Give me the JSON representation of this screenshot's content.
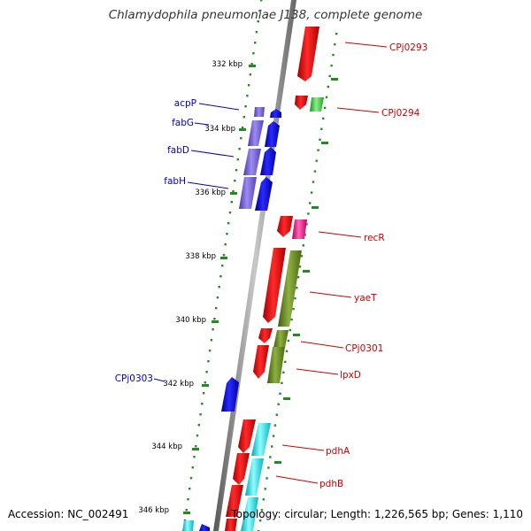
{
  "title": "Chlamydophila pneumoniae J138, complete genome",
  "accession": "Accession: NC_002491",
  "topology": "Topology: circular; Length: 1,226,565 bp; Genes: 1,110",
  "kbp_ticks": [
    "332 kbp",
    "334 kbp",
    "336 kbp",
    "338 kbp",
    "340 kbp",
    "342 kbp",
    "344 kbp",
    "346 kbp"
  ],
  "genes_left": [
    "acpP",
    "fabG",
    "fabD",
    "fabH",
    "CPj0303"
  ],
  "genes_right": [
    "CPj0293",
    "CPj0294",
    "recR",
    "yaeT",
    "CPj0301",
    "lpxD",
    "pdhA",
    "pdhB"
  ],
  "colors": {
    "forward_strand": "#0000ee",
    "reverse_strand": "#ee0000",
    "backbone": "#888888",
    "tick_dots": "#228b22",
    "cog_lipid": "#7a66d8",
    "cog_cell_wall": "#6b8e23",
    "cog_energy": "#00e5ee",
    "cog_replication": "#ff1493",
    "cog_unknown": "#33cc33"
  }
}
